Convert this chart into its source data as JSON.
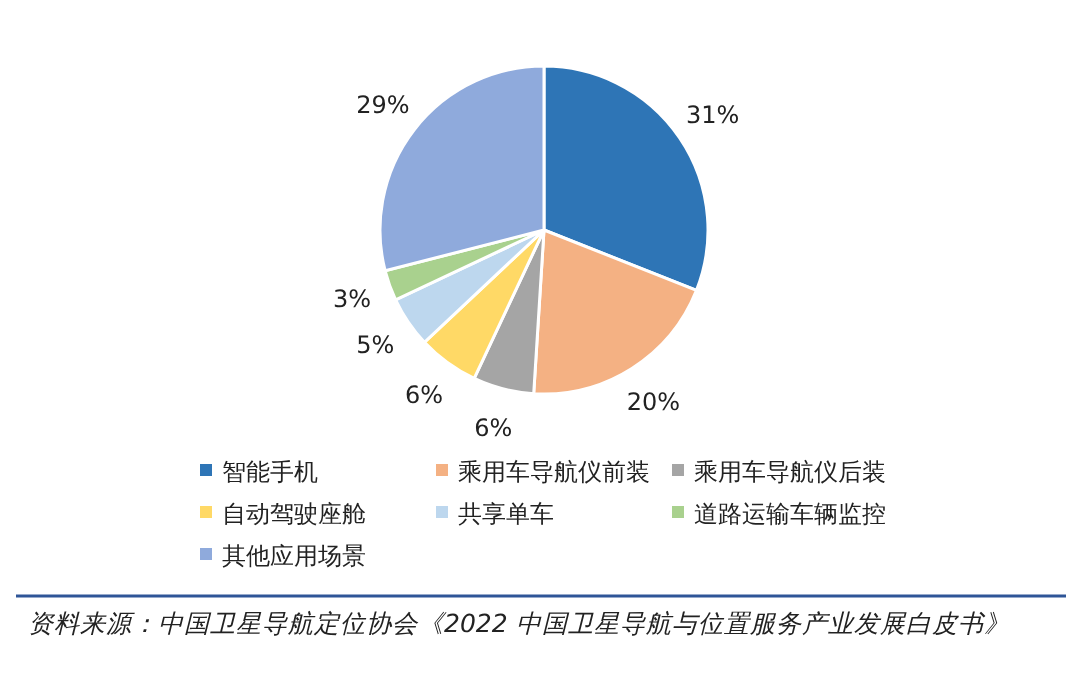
{
  "chart_data": {
    "type": "pie",
    "categories": [
      "智能手机",
      "乘用车导航仪前装",
      "乘用车导航仪后装",
      "自动驾驶座舱",
      "共享单车",
      "道路运输车辆监控",
      "其他应用场景"
    ],
    "values": [
      31,
      20,
      6,
      6,
      5,
      3,
      29
    ],
    "colors": [
      "#2e75b6",
      "#f4b183",
      "#a5a5a5",
      "#ffd966",
      "#bdd7ee",
      "#a9d18e",
      "#8faadc"
    ],
    "value_labels": [
      "31%",
      "20%",
      "6%",
      "6%",
      "5%",
      "3%",
      "29%"
    ],
    "legend": "bottom",
    "annotations": [
      "资料来源：中国卫星导航定位协会《2022 中国卫星导航与位置服务产业发展白皮书》"
    ]
  }
}
